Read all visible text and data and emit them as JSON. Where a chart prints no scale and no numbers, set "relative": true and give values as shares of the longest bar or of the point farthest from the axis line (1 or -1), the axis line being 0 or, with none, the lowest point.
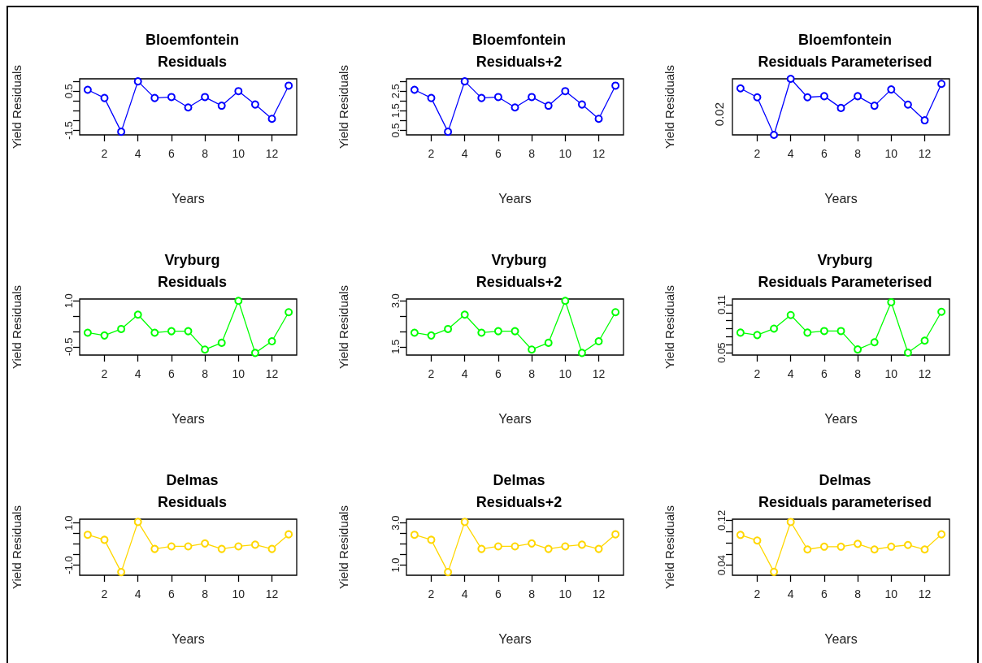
{
  "chart_data": [
    {
      "type": "line",
      "title": "Bloemfontein\nResiduals",
      "xlabel": "Years",
      "ylabel": "Yield Residuals",
      "color": "#0000ff",
      "marker": "circle",
      "line_style": "solid",
      "x": [
        1,
        2,
        3,
        4,
        5,
        6,
        7,
        8,
        9,
        10,
        11,
        12,
        13
      ],
      "values": [
        0.57,
        0.15,
        -1.57,
        1.0,
        0.15,
        0.2,
        -0.33,
        0.2,
        -0.24,
        0.5,
        -0.18,
        -0.91,
        0.78
      ],
      "xlim": [
        0.52,
        13.48
      ],
      "xticks": [
        2,
        4,
        6,
        8,
        10,
        12
      ],
      "ylim": [
        -1.73,
        1.13
      ],
      "yticks": [
        -1.5,
        {
          "value": -1,
          "label": null
        },
        {
          "value": -0.5,
          "label": null
        },
        {
          "value": 0,
          "label": null
        },
        0.5,
        {
          "value": 1,
          "label": null
        }
      ]
    },
    {
      "type": "line",
      "title": "Bloemfontein\nResiduals+2",
      "xlabel": "Years",
      "ylabel": "Yield Residuals",
      "color": "#0000ff",
      "marker": "circle",
      "line_style": "solid",
      "x": [
        1,
        2,
        3,
        4,
        5,
        6,
        7,
        8,
        9,
        10,
        11,
        12,
        13
      ],
      "values": [
        2.57,
        2.15,
        0.43,
        3.0,
        2.15,
        2.2,
        1.67,
        2.2,
        1.76,
        2.5,
        1.82,
        1.09,
        2.78
      ],
      "xlim": [
        0.52,
        13.48
      ],
      "xticks": [
        2,
        4,
        6,
        8,
        10,
        12
      ],
      "ylim": [
        0.27,
        3.13
      ],
      "yticks": [
        0.5,
        {
          "value": 1,
          "label": null
        },
        1.5,
        {
          "value": 2,
          "label": null
        },
        2.5,
        {
          "value": 3,
          "label": null
        }
      ]
    },
    {
      "type": "line",
      "title": "Bloemfontein\nResiduals Parameterised",
      "xlabel": "Years",
      "ylabel": "Yield Residuals",
      "color": "#0000ff",
      "marker": "circle",
      "line_style": "solid",
      "x": [
        1,
        2,
        3,
        4,
        5,
        6,
        7,
        8,
        9,
        10,
        11,
        12,
        13
      ],
      "values": [
        0.83,
        0.67,
        0,
        1,
        0.67,
        0.69,
        0.48,
        0.69,
        0.52,
        0.81,
        0.54,
        0.26,
        0.91
      ],
      "relative": true,
      "annotations": [
        "0.02"
      ],
      "xlim": [
        0.52,
        13.48
      ],
      "xticks": [
        2,
        4,
        6,
        8,
        10,
        12
      ]
    },
    {
      "type": "line",
      "title": "Vryburg\nResiduals",
      "xlabel": "Years",
      "ylabel": "Yield Residuals",
      "color": "#00ff00",
      "marker": "circle",
      "line_style": "solid",
      "x": [
        1,
        2,
        3,
        4,
        5,
        6,
        7,
        8,
        9,
        10,
        11,
        12,
        13
      ],
      "values": [
        -0.04,
        -0.13,
        0.08,
        0.55,
        -0.04,
        0.01,
        0.01,
        -0.59,
        -0.37,
        1.0,
        -0.7,
        -0.32,
        0.63
      ],
      "xlim": [
        0.52,
        13.48
      ],
      "xticks": [
        2,
        4,
        6,
        8,
        10,
        12
      ],
      "ylim": [
        -0.77,
        1.06
      ],
      "yticks": [
        -0.5,
        {
          "value": 0,
          "label": null
        },
        {
          "value": 0.5,
          "label": null
        },
        {
          "value": 1,
          "label": "1.0"
        }
      ]
    },
    {
      "type": "line",
      "title": "Vryburg\nResiduals+2",
      "xlabel": "Years",
      "ylabel": "Yield Residuals",
      "color": "#00ff00",
      "marker": "circle",
      "line_style": "solid",
      "x": [
        1,
        2,
        3,
        4,
        5,
        6,
        7,
        8,
        9,
        10,
        11,
        12,
        13
      ],
      "values": [
        1.96,
        1.87,
        2.08,
        2.55,
        1.96,
        2.01,
        2.01,
        1.41,
        1.63,
        3.0,
        1.3,
        1.68,
        2.63
      ],
      "xlim": [
        0.52,
        13.48
      ],
      "xticks": [
        2,
        4,
        6,
        8,
        10,
        12
      ],
      "ylim": [
        1.23,
        3.06
      ],
      "yticks": [
        1.5,
        {
          "value": 2,
          "label": null
        },
        {
          "value": 2.5,
          "label": null
        },
        {
          "value": 3,
          "label": "3.0"
        }
      ]
    },
    {
      "type": "line",
      "title": "Vryburg\nResiduals Parameterised",
      "xlabel": "Years",
      "ylabel": "Yield Residuals",
      "color": "#00ff00",
      "marker": "circle",
      "line_style": "solid",
      "x": [
        1,
        2,
        3,
        4,
        5,
        6,
        7,
        8,
        9,
        10,
        11,
        12,
        13
      ],
      "values": [
        0.075,
        0.072,
        0.08,
        0.097,
        0.075,
        0.077,
        0.077,
        0.054,
        0.063,
        0.113,
        0.05,
        0.065,
        0.101
      ],
      "xlim": [
        0.52,
        13.48
      ],
      "xticks": [
        2,
        4,
        6,
        8,
        10,
        12
      ],
      "ylim": [
        0.047,
        0.117
      ],
      "yticks": [
        0.05,
        {
          "value": 0.06,
          "label": null
        },
        {
          "value": 0.07,
          "label": null
        },
        {
          "value": 0.08,
          "label": null
        },
        {
          "value": 0.09,
          "label": null
        },
        {
          "value": 0.1,
          "label": null
        },
        0.11
      ]
    },
    {
      "type": "line",
      "title": "Delmas\nResiduals",
      "xlabel": "Years",
      "ylabel": "Yield Residuals",
      "color": "#ffd700",
      "marker": "circle",
      "line_style": "solid",
      "x": [
        1,
        2,
        3,
        4,
        5,
        6,
        7,
        8,
        9,
        10,
        11,
        12,
        13
      ],
      "values": [
        0.44,
        0.2,
        -1.33,
        1.05,
        -0.23,
        -0.11,
        -0.11,
        0.03,
        -0.23,
        -0.11,
        -0.03,
        -0.23,
        0.46
      ],
      "xlim": [
        0.52,
        13.48
      ],
      "xticks": [
        2,
        4,
        6,
        8,
        10,
        12
      ],
      "ylim": [
        -1.48,
        1.18
      ],
      "yticks": [
        {
          "value": -1,
          "label": "-1.0"
        },
        {
          "value": -0.5,
          "label": null
        },
        {
          "value": 0,
          "label": null
        },
        {
          "value": 0.5,
          "label": null
        },
        {
          "value": 1,
          "label": "1.0"
        }
      ]
    },
    {
      "type": "line",
      "title": "Delmas\nResiduals+2",
      "xlabel": "Years",
      "ylabel": "Yield Residuals",
      "color": "#ffd700",
      "marker": "circle",
      "line_style": "solid",
      "x": [
        1,
        2,
        3,
        4,
        5,
        6,
        7,
        8,
        9,
        10,
        11,
        12,
        13
      ],
      "values": [
        2.44,
        2.2,
        0.67,
        3.05,
        1.77,
        1.89,
        1.89,
        2.03,
        1.77,
        1.89,
        1.97,
        1.77,
        2.46
      ],
      "xlim": [
        0.52,
        13.48
      ],
      "xticks": [
        2,
        4,
        6,
        8,
        10,
        12
      ],
      "ylim": [
        0.52,
        3.18
      ],
      "yticks": [
        {
          "value": 1,
          "label": "1.0"
        },
        {
          "value": 1.5,
          "label": null
        },
        {
          "value": 2,
          "label": null
        },
        {
          "value": 2.5,
          "label": null
        },
        {
          "value": 3,
          "label": "3.0"
        }
      ]
    },
    {
      "type": "line",
      "title": "Delmas\nResiduals parameterised",
      "xlabel": "Years",
      "ylabel": "Yield Residuals",
      "color": "#ffd700",
      "marker": "circle",
      "line_style": "solid",
      "x": [
        1,
        2,
        3,
        4,
        5,
        6,
        7,
        8,
        9,
        10,
        11,
        12,
        13
      ],
      "values": [
        0.094,
        0.084,
        0.028,
        0.117,
        0.068,
        0.073,
        0.073,
        0.078,
        0.068,
        0.073,
        0.076,
        0.068,
        0.095
      ],
      "xlim": [
        0.52,
        13.48
      ],
      "xticks": [
        2,
        4,
        6,
        8,
        10,
        12
      ],
      "ylim": [
        0.022,
        0.122
      ],
      "yticks": [
        0.04,
        {
          "value": 0.06,
          "label": null
        },
        {
          "value": 0.08,
          "label": null
        },
        {
          "value": 0.1,
          "label": null
        },
        0.12
      ]
    }
  ]
}
